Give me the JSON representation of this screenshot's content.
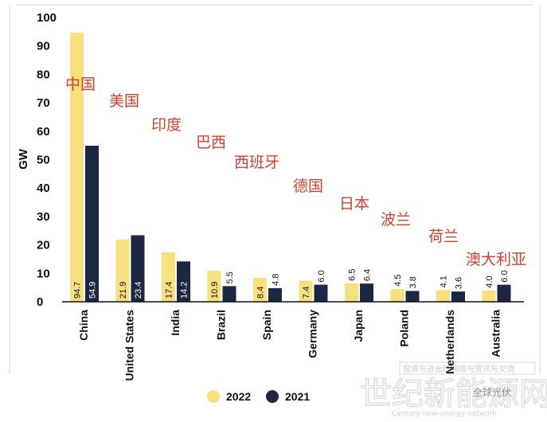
{
  "chart_data": {
    "type": "bar",
    "ylabel": "GW",
    "ylim": [
      0,
      100
    ],
    "yticks": [
      0,
      10,
      20,
      30,
      40,
      50,
      60,
      70,
      80,
      90,
      100
    ],
    "categories": [
      "China",
      "United States",
      "India",
      "Brazil",
      "Spain",
      "Germany",
      "Japan",
      "Poland",
      "Netherlands",
      "Australia"
    ],
    "category_labels_cn": [
      "中国",
      "美国",
      "印度",
      "巴西",
      "西班牙",
      "德国",
      "日本",
      "波兰",
      "荷兰",
      "澳大利亚"
    ],
    "series": [
      {
        "name": "2022",
        "color": "#f9e07f",
        "values": [
          94.7,
          21.9,
          17.4,
          10.9,
          8.4,
          7.4,
          6.5,
          4.5,
          4.1,
          4.0
        ]
      },
      {
        "name": "2021",
        "color": "#1c2841",
        "values": [
          54.9,
          23.4,
          14.2,
          5.5,
          4.8,
          6.0,
          6.4,
          3.8,
          3.6,
          6.0
        ]
      }
    ],
    "legend": "bottom-center",
    "grid": false
  },
  "watermark": {
    "big": "世纪新能源网",
    "small": "Century-new-energy-network",
    "top": "投资与进出口网络与资讯与交流",
    "account": "全球光伏"
  }
}
